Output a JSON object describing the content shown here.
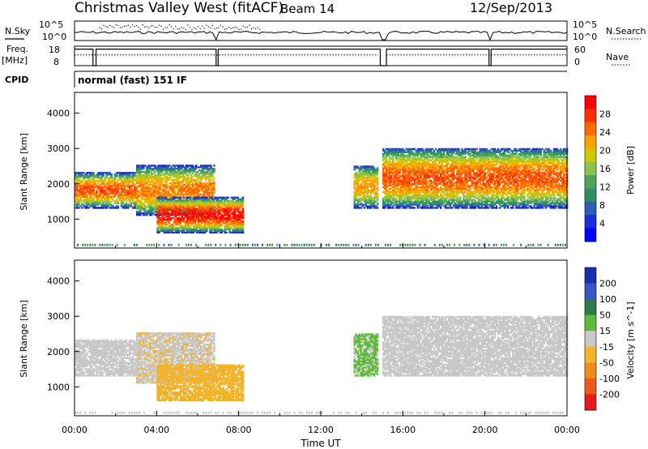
{
  "header": {
    "station": "Christmas Valley West (fitACF)",
    "beam": "Beam 14",
    "date": "12/Sep/2013"
  },
  "nsky_panel": {
    "left_label": "N.Sky",
    "ticks_left": [
      "10^5",
      "10^0"
    ],
    "ticks_right": [
      "10^5",
      "10^0"
    ],
    "right_label": "N.Search"
  },
  "freq_panel": {
    "left_label_1": "Freq.",
    "left_label_2": "[MHz]",
    "ticks_left": [
      "18",
      "8"
    ],
    "ticks_right": [
      "60",
      "0"
    ],
    "right_label": "Nave"
  },
  "cpid": {
    "label": "CPID",
    "mode": "normal (fast) 151 IF"
  },
  "power_panel": {
    "ylabel": "Slant Range [km]",
    "yticks": [
      "4000",
      "3000",
      "2000",
      "1000"
    ],
    "colorbar_label": "Power [dB]",
    "colorbar_ticks": [
      "28",
      "24",
      "20",
      "16",
      "12",
      "8",
      "4"
    ],
    "colors": [
      "#ff0000",
      "#ff2d00",
      "#ff6a00",
      "#ffa200",
      "#cfc800",
      "#8cc34b",
      "#4ea25a",
      "#2f8f63",
      "#2a5fb5",
      "#1e2cd6",
      "#0000ff"
    ]
  },
  "velocity_panel": {
    "ylabel": "Slant Range [km]",
    "yticks": [
      "4000",
      "3000",
      "2000",
      "1000"
    ],
    "colorbar_label": "Velocity [m s^-1]",
    "colorbar_ticks": [
      "200",
      "100",
      "50",
      "15",
      "-15",
      "-50",
      "-100",
      "-200"
    ],
    "colors": [
      "#1a2fb0",
      "#3a55c8",
      "#2f7a4a",
      "#5dbb3a",
      "#c8c8c8",
      "#f3b32a",
      "#f08a1e",
      "#ee5a1a",
      "#e61a1a"
    ]
  },
  "xaxis": {
    "label": "Time UT",
    "ticks": [
      "00:00",
      "04:00",
      "08:00",
      "12:00",
      "16:00",
      "20:00",
      "00:00"
    ]
  },
  "chart_data": {
    "type": "heatmap",
    "title": "Christmas Valley West (fitACF)",
    "xlabel": "Time UT",
    "ylabel": "Slant Range [km]",
    "xlim": [
      "00:00",
      "24:00"
    ],
    "ylim": [
      180,
      4590
    ],
    "panels": [
      {
        "quantity": "Power",
        "unit": "dB",
        "clim": [
          0,
          31
        ],
        "echo_regions": [
          {
            "t_start": 0.0,
            "t_end": 3.0,
            "range_low": 1300,
            "range_high": 2300,
            "peak": 26
          },
          {
            "t_start": 3.0,
            "t_end": 6.8,
            "range_low": 1100,
            "range_high": 2500,
            "peak": 24
          },
          {
            "t_start": 4.0,
            "t_end": 8.2,
            "range_low": 600,
            "range_high": 1600,
            "peak": 30
          },
          {
            "t_start": 13.6,
            "t_end": 14.8,
            "range_low": 1300,
            "range_high": 2500,
            "peak": 22
          },
          {
            "t_start": 15.0,
            "t_end": 24.0,
            "range_low": 1300,
            "range_high": 3000,
            "peak": 26
          }
        ]
      },
      {
        "quantity": "Velocity",
        "unit": "m s^-1",
        "clim": [
          -250,
          250
        ],
        "echo_regions": [
          {
            "t_start": 0.0,
            "t_end": 3.0,
            "range_low": 1300,
            "range_high": 2300,
            "value": 0
          },
          {
            "t_start": 3.0,
            "t_end": 6.8,
            "range_low": 1100,
            "range_high": 2500,
            "value": -20
          },
          {
            "t_start": 4.0,
            "t_end": 8.2,
            "range_low": 600,
            "range_high": 1600,
            "value": -70
          },
          {
            "t_start": 13.6,
            "t_end": 14.8,
            "range_low": 1300,
            "range_high": 2500,
            "value": 40
          },
          {
            "t_start": 15.0,
            "t_end": 24.0,
            "range_low": 1300,
            "range_high": 3000,
            "value": 0
          }
        ]
      }
    ],
    "frequency_mhz": {
      "ylim": [
        8,
        18
      ],
      "typical": 16.5
    },
    "nave": {
      "ylim": [
        0,
        60
      ],
      "typical": 33
    }
  }
}
